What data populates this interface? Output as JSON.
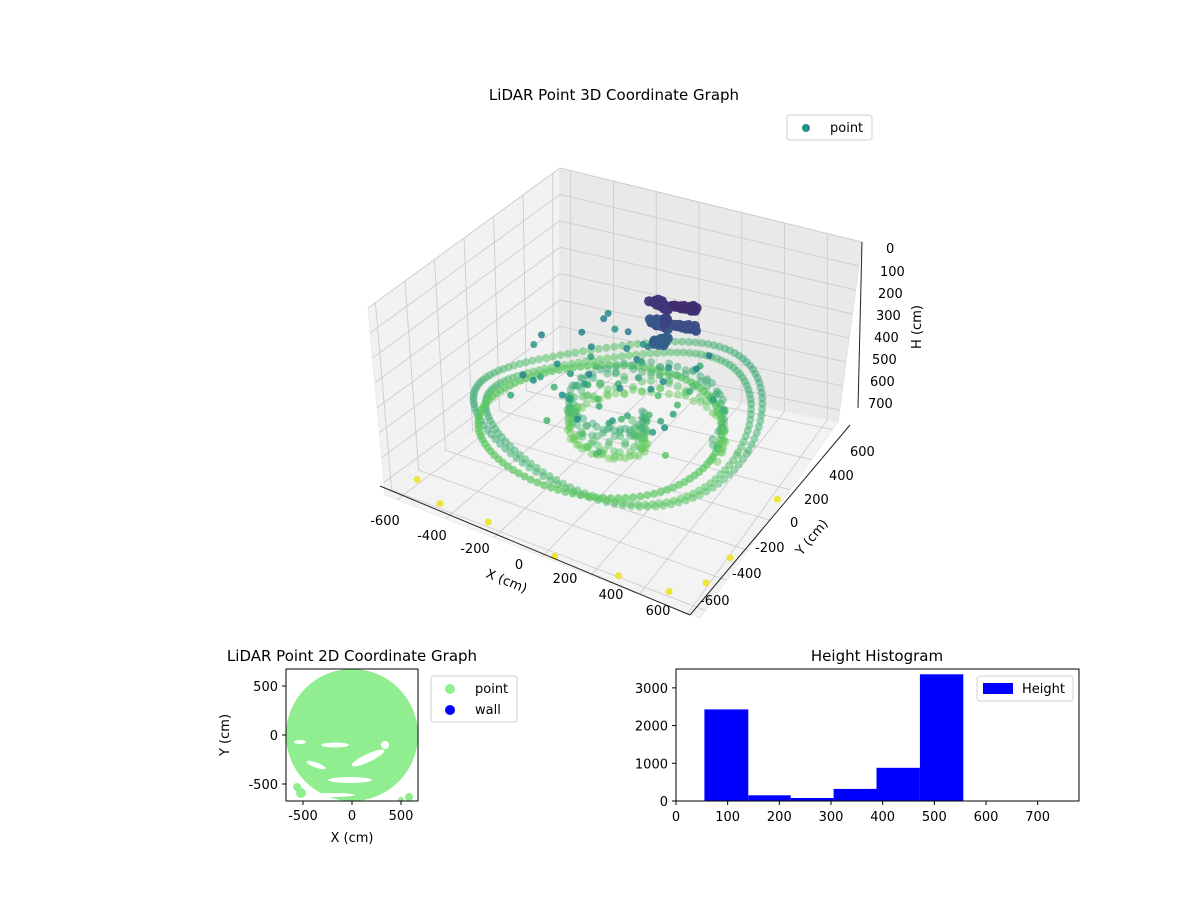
{
  "chart_data": [
    {
      "type": "scatter",
      "projection": "3d",
      "title": "LiDAR Point 3D Coordinate Graph",
      "xlabel": "X (cm)",
      "ylabel": "Y (cm)",
      "zlabel": "H (cm)",
      "xlim": [
        -650,
        650
      ],
      "ylim": [
        -650,
        650
      ],
      "zlim": [
        750,
        0
      ],
      "zaxis_inverted": true,
      "x_ticks": [
        -600,
        -400,
        -200,
        0,
        200,
        400,
        600
      ],
      "y_ticks": [
        -600,
        -400,
        -200,
        0,
        200,
        400,
        600
      ],
      "z_ticks": [
        0,
        100,
        200,
        300,
        400,
        500,
        600,
        700
      ],
      "colormap": "viridis",
      "grid": true,
      "legend": {
        "placement": "top-right",
        "entries": [
          {
            "name": "point",
            "color": "#21918c"
          }
        ]
      },
      "series": [
        {
          "name": "point",
          "description_key": "outer_ring",
          "radius": 560,
          "h": 500
        },
        {
          "name": "point",
          "description_key": "inner_ring",
          "radius": 470,
          "h": 560
        },
        {
          "name": "point",
          "description_key": "central_cluster",
          "x": 150,
          "y": 120,
          "h": 100
        }
      ],
      "floor_points": [
        {
          "x": -600,
          "y": -500,
          "h": 730
        },
        {
          "x": -450,
          "y": -600,
          "h": 730
        },
        {
          "x": -250,
          "y": -600,
          "h": 730
        },
        {
          "x": 50,
          "y": -650,
          "h": 730
        },
        {
          "x": 300,
          "y": -620,
          "h": 730
        },
        {
          "x": 500,
          "y": -600,
          "h": 730
        },
        {
          "x": 600,
          "y": -480,
          "h": 730
        },
        {
          "x": 620,
          "y": -300,
          "h": 730
        },
        {
          "x": 640,
          "y": 100,
          "h": 730
        }
      ]
    },
    {
      "type": "scatter",
      "title": "LiDAR Point 2D Coordinate Graph",
      "xlabel": "X (cm)",
      "ylabel": "Y (cm)",
      "xlim": [
        -680,
        680
      ],
      "ylim": [
        -680,
        680
      ],
      "x_ticks": [
        -500,
        0,
        500
      ],
      "y_ticks": [
        -500,
        0,
        500
      ],
      "legend": {
        "placement": "outside-right",
        "entries": [
          {
            "name": "point",
            "color": "#90ee90"
          },
          {
            "name": "wall",
            "color": "#0000ff"
          }
        ]
      },
      "disc": {
        "center_x": 0,
        "center_y": 0,
        "radius": 680,
        "color": "#90ee90"
      }
    },
    {
      "type": "bar",
      "title": "Height Histogram",
      "xlabel": "",
      "ylabel": "",
      "xlim": [
        0,
        780
      ],
      "ylim": [
        0,
        3500
      ],
      "x_ticks": [
        0,
        100,
        200,
        300,
        400,
        500,
        600,
        700
      ],
      "y_ticks": [
        0,
        1000,
        2000,
        3000
      ],
      "color": "#0000ff",
      "legend": {
        "placement": "top-right",
        "entries": [
          {
            "name": "Height",
            "color": "#0000ff"
          }
        ]
      },
      "bins": [
        {
          "from": 55,
          "to": 140,
          "count": 2430
        },
        {
          "from": 140,
          "to": 222,
          "count": 150
        },
        {
          "from": 222,
          "to": 305,
          "count": 80
        },
        {
          "from": 305,
          "to": 388,
          "count": 320
        },
        {
          "from": 388,
          "to": 472,
          "count": 880
        },
        {
          "from": 472,
          "to": 556,
          "count": 3360
        },
        {
          "from": 556,
          "to": 640,
          "count": 0
        },
        {
          "from": 640,
          "to": 722,
          "count": 0
        }
      ]
    }
  ]
}
